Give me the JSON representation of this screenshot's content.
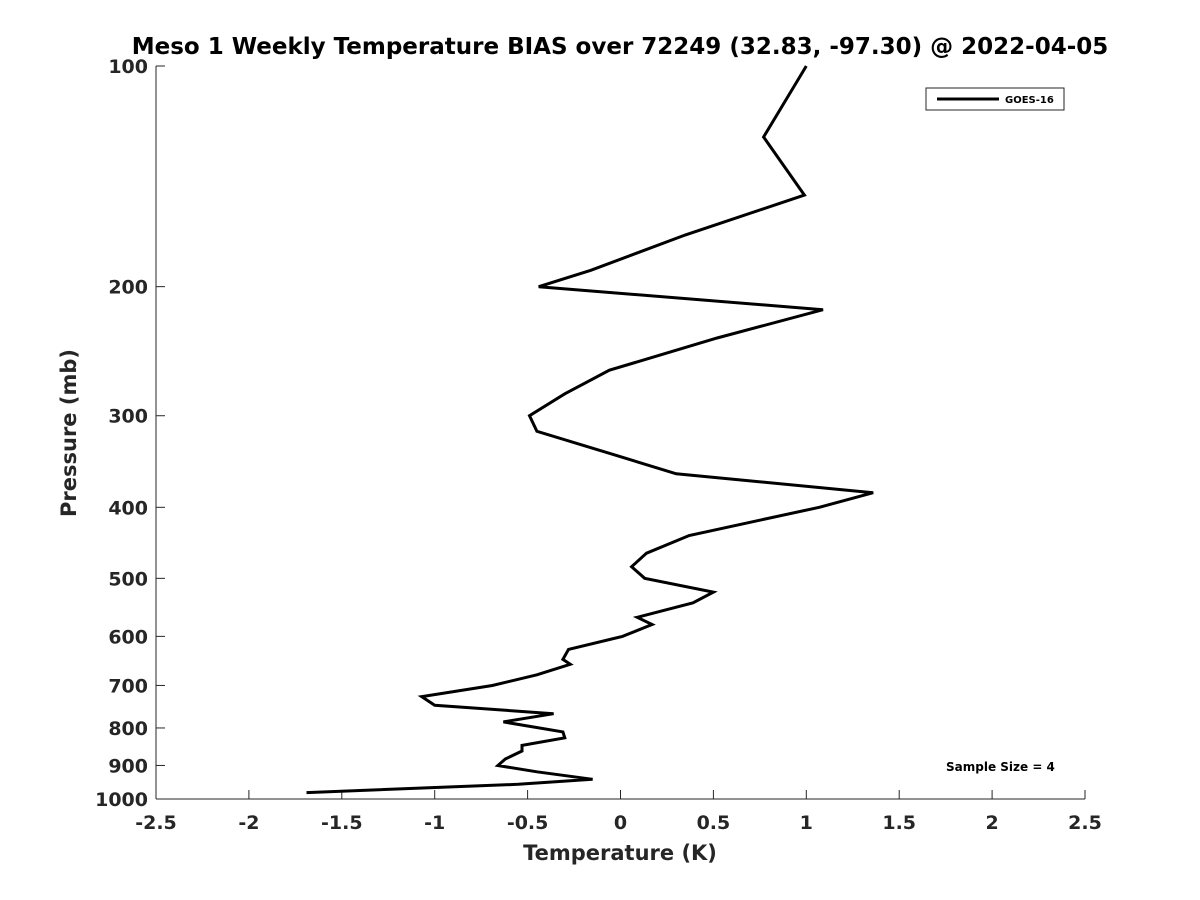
{
  "chart_data": {
    "type": "line",
    "title": "Meso 1 Weekly Temperature BIAS over 72249 (32.83, -97.30) @ 2022-04-05",
    "xlabel": "Temperature (K)",
    "ylabel": "Pressure (mb)",
    "xlim": [
      -2.5,
      2.5
    ],
    "ylim": [
      1000,
      100
    ],
    "y_scale": "log",
    "y_reversed": true,
    "grid": false,
    "legend_position": "top-right",
    "x_ticks": [
      -2.5,
      -2,
      -1.5,
      -1,
      -0.5,
      0,
      0.5,
      1,
      1.5,
      2,
      2.5
    ],
    "x_tick_labels": [
      "-2.5",
      "-2",
      "-1.5",
      "-1",
      "-0.5",
      "0",
      "0.5",
      "1",
      "1.5",
      "2",
      "2.5"
    ],
    "y_ticks": [
      100,
      200,
      300,
      400,
      500,
      600,
      700,
      800,
      900,
      1000
    ],
    "y_tick_labels": [
      "100",
      "200",
      "300",
      "400",
      "500",
      "600",
      "700",
      "800",
      "900",
      "1000"
    ],
    "annotation": "Sample Size = 4",
    "series": [
      {
        "name": "GOES-16",
        "color": "#000000",
        "points": [
          {
            "t": 1.0,
            "p": 100
          },
          {
            "t": 0.77,
            "p": 125
          },
          {
            "t": 0.99,
            "p": 150
          },
          {
            "t": 0.35,
            "p": 170
          },
          {
            "t": -0.16,
            "p": 190
          },
          {
            "t": -0.44,
            "p": 200
          },
          {
            "t": 1.09,
            "p": 215
          },
          {
            "t": 0.52,
            "p": 235
          },
          {
            "t": -0.06,
            "p": 260
          },
          {
            "t": -0.3,
            "p": 280
          },
          {
            "t": -0.49,
            "p": 300
          },
          {
            "t": -0.45,
            "p": 315
          },
          {
            "t": -0.02,
            "p": 340
          },
          {
            "t": 0.3,
            "p": 360
          },
          {
            "t": 1.36,
            "p": 382
          },
          {
            "t": 1.07,
            "p": 400
          },
          {
            "t": 0.37,
            "p": 437
          },
          {
            "t": 0.14,
            "p": 462
          },
          {
            "t": 0.06,
            "p": 482
          },
          {
            "t": 0.13,
            "p": 500
          },
          {
            "t": 0.5,
            "p": 522
          },
          {
            "t": 0.39,
            "p": 540
          },
          {
            "t": 0.09,
            "p": 565
          },
          {
            "t": 0.17,
            "p": 578
          },
          {
            "t": 0.01,
            "p": 600
          },
          {
            "t": -0.28,
            "p": 625
          },
          {
            "t": -0.31,
            "p": 645
          },
          {
            "t": -0.27,
            "p": 655
          },
          {
            "t": -0.45,
            "p": 677
          },
          {
            "t": -0.69,
            "p": 700
          },
          {
            "t": -1.07,
            "p": 725
          },
          {
            "t": -1.0,
            "p": 745
          },
          {
            "t": -0.36,
            "p": 765
          },
          {
            "t": -0.63,
            "p": 785
          },
          {
            "t": -0.31,
            "p": 810
          },
          {
            "t": -0.3,
            "p": 825
          },
          {
            "t": -0.53,
            "p": 845
          },
          {
            "t": -0.53,
            "p": 860
          },
          {
            "t": -0.62,
            "p": 882
          },
          {
            "t": -0.66,
            "p": 900
          },
          {
            "t": -0.45,
            "p": 918
          },
          {
            "t": -0.15,
            "p": 940
          },
          {
            "t": -0.55,
            "p": 955
          },
          {
            "t": -1.69,
            "p": 980
          }
        ]
      }
    ]
  }
}
